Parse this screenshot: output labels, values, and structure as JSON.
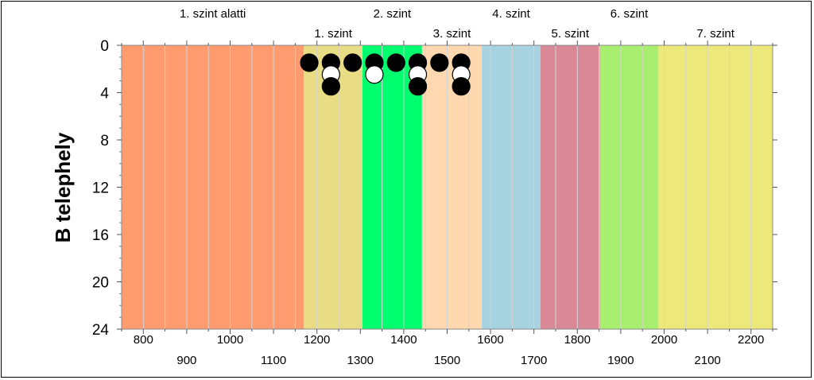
{
  "chart_data": {
    "type": "scatter",
    "ylabel": "B telephely",
    "ylim": [
      0,
      24
    ],
    "y_inverted": true,
    "yticks": [
      0,
      4,
      8,
      12,
      16,
      20,
      24
    ],
    "xlim": [
      750,
      2250
    ],
    "xticks_top_row": [
      800,
      1000,
      1200,
      1400,
      1600,
      1800,
      2000,
      2200
    ],
    "xticks_bottom_row": [
      900,
      1100,
      1300,
      1500,
      1700,
      1900,
      2100
    ],
    "levels": [
      {
        "name": "1. szint alatti",
        "from": 750,
        "to": 1170,
        "color": "#ff9b6e",
        "label_row": "upper"
      },
      {
        "name": "1. szint",
        "from": 1170,
        "to": 1305,
        "color": "#e8dc84",
        "label_row": "lower"
      },
      {
        "name": "2. szint",
        "from": 1305,
        "to": 1442,
        "color": "#00ff6e",
        "label_row": "upper"
      },
      {
        "name": "3. szint",
        "from": 1442,
        "to": 1580,
        "color": "#ffd8b0",
        "label_row": "lower"
      },
      {
        "name": "4. szint",
        "from": 1580,
        "to": 1715,
        "color": "#a7d2e0",
        "label_row": "upper"
      },
      {
        "name": "5. szint",
        "from": 1715,
        "to": 1852,
        "color": "#d98898",
        "label_row": "lower"
      },
      {
        "name": "6. szint",
        "from": 1852,
        "to": 1987,
        "color": "#a8ef70",
        "label_row": "upper"
      },
      {
        "name": "7. szint",
        "from": 1987,
        "to": 2250,
        "color": "#ece87a",
        "label_row": "lower"
      }
    ],
    "points": [
      {
        "x": 1175,
        "y": 1,
        "fill": "black"
      },
      {
        "x": 1225,
        "y": 1,
        "fill": "black"
      },
      {
        "x": 1225,
        "y": 2,
        "fill": "white"
      },
      {
        "x": 1225,
        "y": 3,
        "fill": "black"
      },
      {
        "x": 1275,
        "y": 1,
        "fill": "black"
      },
      {
        "x": 1325,
        "y": 1,
        "fill": "black"
      },
      {
        "x": 1325,
        "y": 2,
        "fill": "white"
      },
      {
        "x": 1375,
        "y": 1,
        "fill": "black"
      },
      {
        "x": 1425,
        "y": 1,
        "fill": "black"
      },
      {
        "x": 1425,
        "y": 2,
        "fill": "white"
      },
      {
        "x": 1425,
        "y": 3,
        "fill": "black"
      },
      {
        "x": 1475,
        "y": 1,
        "fill": "black"
      },
      {
        "x": 1525,
        "y": 1,
        "fill": "black"
      },
      {
        "x": 1525,
        "y": 2,
        "fill": "white"
      },
      {
        "x": 1525,
        "y": 3,
        "fill": "black"
      }
    ],
    "grid": "vertical every 50"
  }
}
